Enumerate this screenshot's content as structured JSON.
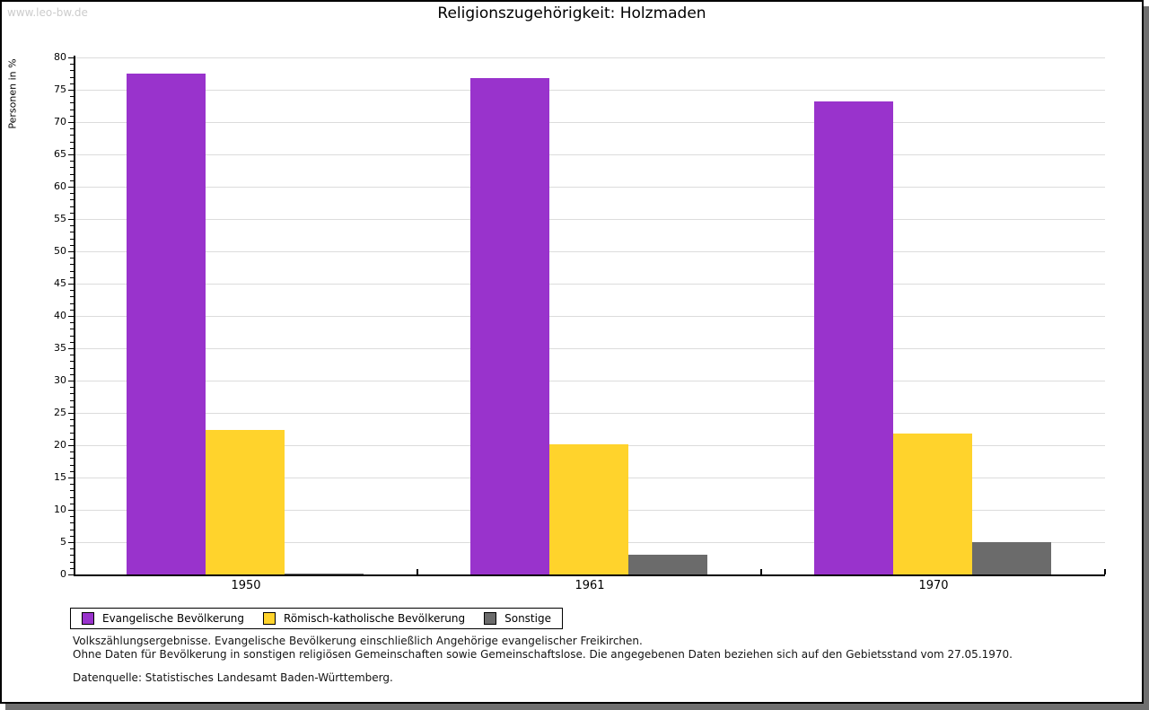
{
  "page": {
    "watermark": "www.leo-bw.de",
    "title": "Religionszugehörigkeit: Holzmaden"
  },
  "chart_data": {
    "type": "bar",
    "title": "Religionszugehörigkeit: Holzmaden",
    "xlabel": "",
    "ylabel": "Personen in %",
    "categories": [
      "1950",
      "1961",
      "1970"
    ],
    "series": [
      {
        "name": "Evangelische Bevölkerung",
        "color": "#9933cc",
        "values": [
          77.5,
          76.8,
          73.2
        ]
      },
      {
        "name": "Römisch-katholische Bevölkerung",
        "color": "#ffd32c",
        "values": [
          22.3,
          20.2,
          21.8
        ]
      },
      {
        "name": "Sonstige",
        "color": "#6b6b6b",
        "values": [
          0.2,
          3.0,
          5.0
        ]
      }
    ],
    "ylim": [
      0,
      80
    ],
    "y_major_step": 5,
    "y_minor_step": 1,
    "grid": true,
    "legend_position": "bottom-left"
  },
  "footnotes": {
    "line1": "Volkszählungsergebnisse. Evangelische Bevölkerung einschließlich Angehörige evangelischer Freikirchen.",
    "line2": "Ohne Daten für Bevölkerung in sonstigen religiösen Gemeinschaften sowie Gemeinschaftslose. Die angegebenen Daten beziehen sich auf den Gebietsstand vom 27.05.1970.",
    "source": "Datenquelle: Statistisches Landesamt Baden-Württemberg."
  },
  "colors": {
    "grid": "#dcdcdc",
    "axis": "#000000",
    "watermark": "#cccccc",
    "shadow": "#6f6f6f"
  }
}
